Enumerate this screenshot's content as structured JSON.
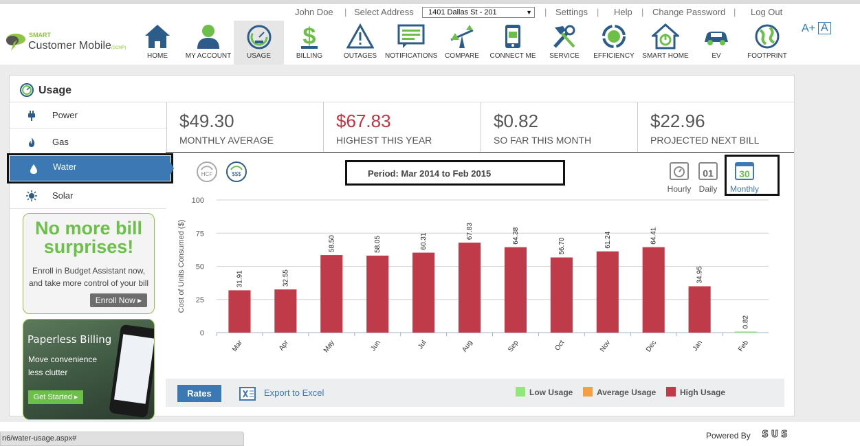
{
  "topbar": {
    "user": "John Doe",
    "select_address_label": "Select Address",
    "address_value": "1401 Dallas St - 201",
    "links": [
      "Settings",
      "Help",
      "Change Password",
      "Log Out"
    ]
  },
  "brand": {
    "line1": "SMART",
    "line2": "Customer Mobile",
    "tag": "(SCMP)"
  },
  "nav": {
    "items": [
      {
        "label": "HOME",
        "icon": "home-icon"
      },
      {
        "label": "MY ACCOUNT",
        "icon": "user-icon"
      },
      {
        "label": "USAGE",
        "icon": "gauge-icon",
        "active": true
      },
      {
        "label": "BILLING",
        "icon": "dollar-icon"
      },
      {
        "label": "OUTAGES",
        "icon": "warning-icon"
      },
      {
        "label": "NOTIFICATIONS",
        "icon": "notification-icon"
      },
      {
        "label": "COMPARE",
        "icon": "compare-icon"
      },
      {
        "label": "CONNECT ME",
        "icon": "phone-icon"
      },
      {
        "label": "SERVICE",
        "icon": "tools-icon"
      },
      {
        "label": "EFFICIENCY",
        "icon": "recycle-icon"
      },
      {
        "label": "SMART HOME",
        "icon": "smart-home-icon"
      },
      {
        "label": "EV",
        "icon": "car-icon"
      },
      {
        "label": "FOOTPRINT",
        "icon": "globe-icon"
      }
    ],
    "font_increase": "A+",
    "font_normal": "A"
  },
  "usage": {
    "title": "Usage",
    "sidebar": [
      "Power",
      "Gas",
      "Water",
      "Solar"
    ],
    "active": "Water"
  },
  "promo1": {
    "headline1": "No more bill",
    "headline2": "surprises!",
    "body1": "Enroll in Budget Assistant now,",
    "body2": "and take more control of your bill",
    "button": "Enroll Now"
  },
  "promo2": {
    "headline": "Paperless Billing",
    "body1": "Move convenience",
    "body2": "less clutter",
    "button": "Get Started"
  },
  "stats": [
    {
      "value": "$49.30",
      "label": "MONTHLY AVERAGE"
    },
    {
      "value": "$67.83",
      "label": "HIGHEST THIS YEAR"
    },
    {
      "value": "$0.82",
      "label": "SO FAR THIS MONTH"
    },
    {
      "value": "$22.96",
      "label": "PROJECTED NEXT BILL"
    }
  ],
  "period": "Period: Mar 2014 to Feb 2015",
  "granularity": [
    "Hourly",
    "Daily",
    "Monthly"
  ],
  "calendar_day": "01",
  "calendar_month_num": "30",
  "unit_toggle": [
    "HCF",
    "$$$"
  ],
  "chart_data": {
    "type": "bar",
    "categories": [
      "Mar",
      "Apr",
      "May",
      "Jun",
      "Jul",
      "Aug",
      "Sep",
      "Oct",
      "Nov",
      "Dec",
      "Jan",
      "Feb"
    ],
    "values": [
      31.91,
      32.55,
      58.5,
      58.05,
      60.31,
      67.83,
      64.38,
      56.7,
      61.24,
      64.41,
      34.95,
      0.82
    ],
    "labels": [
      "31.91",
      "32.55",
      "58.50",
      "58.05",
      "60.31",
      "67.83",
      "64.38",
      "56.70",
      "61.24",
      "64.41",
      "34.95",
      "0.82"
    ],
    "bar_colors": [
      "#bf3b4a",
      "#bf3b4a",
      "#bf3b4a",
      "#bf3b4a",
      "#bf3b4a",
      "#bf3b4a",
      "#bf3b4a",
      "#bf3b4a",
      "#bf3b4a",
      "#bf3b4a",
      "#bf3b4a",
      "#8ee37a"
    ],
    "ylabel": "Cost of Units Consumed ($)",
    "ylim": [
      0,
      100
    ],
    "yticks": [
      "0",
      "25",
      "50",
      "75",
      "100"
    ],
    "grid": true
  },
  "footer": {
    "rates": "Rates",
    "export": "Export to Excel",
    "legend": [
      {
        "label": "Low Usage",
        "color": "#90e878"
      },
      {
        "label": "Average Usage",
        "color": "#f5a040"
      },
      {
        "label": "High Usage",
        "color": "#bf3b4a"
      }
    ]
  },
  "status_url": "n6/water-usage.aspx#",
  "powered_by": "Powered By",
  "powered_brand": "SUS"
}
